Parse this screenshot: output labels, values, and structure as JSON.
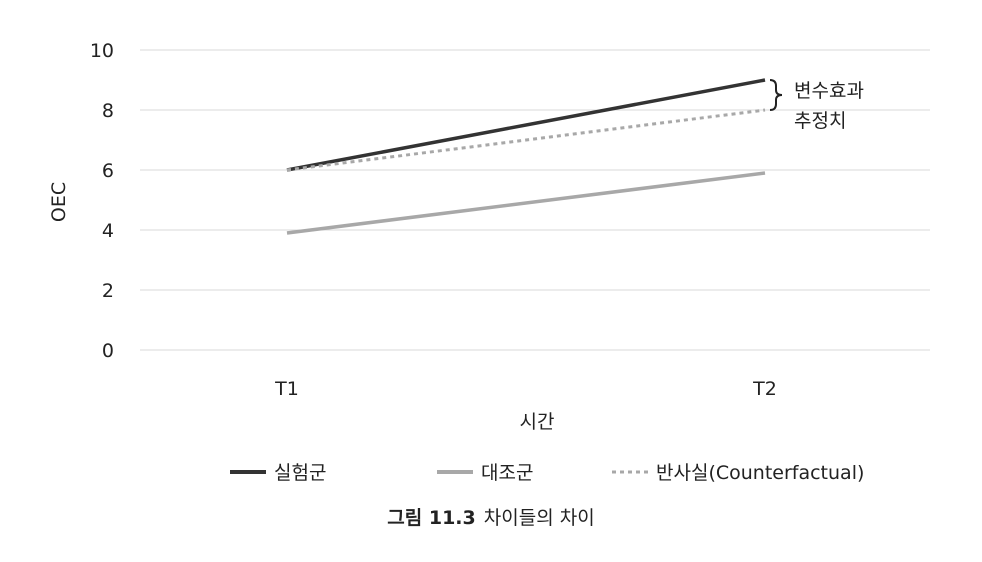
{
  "chart_data": {
    "type": "line",
    "categories": [
      "T1",
      "T2"
    ],
    "series": [
      {
        "name": "실험군",
        "values": [
          6,
          9
        ],
        "color": "#333333",
        "style": "solid"
      },
      {
        "name": "대조군",
        "values": [
          3.9,
          5.9
        ],
        "color": "#a8a8a8",
        "style": "solid"
      },
      {
        "name": "반사실(Counterfactual)",
        "values": [
          6,
          8
        ],
        "color": "#a8a8a8",
        "style": "dotted"
      }
    ],
    "xlabel": "시간",
    "ylabel": "OEC",
    "ylim": [
      0,
      10
    ],
    "yticks": [
      0,
      2,
      4,
      6,
      8,
      10
    ],
    "grid": true,
    "legend": "bottom",
    "annotation": {
      "lines": [
        "변수효과",
        "추정치"
      ],
      "from": 8,
      "to": 9
    }
  },
  "caption": {
    "label": "그림 11.3",
    "text": "차이들의 차이"
  }
}
